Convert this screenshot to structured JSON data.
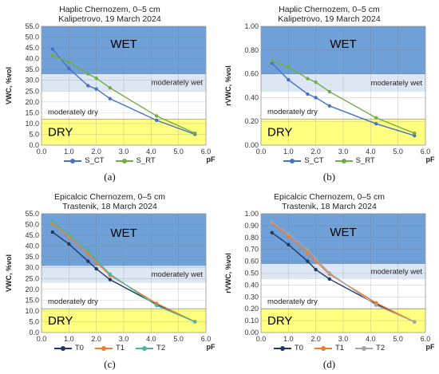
{
  "colors": {
    "wet": "#6fa0d8",
    "moderately_wet": "#dde6f3",
    "dry": "#ffff80",
    "S_CT": "#4472c4",
    "S_RT": "#70ad47",
    "T0": "#1f3864",
    "T1": "#ed7d31",
    "T2": "#4fb39a",
    "T2_b": "#a5a5a5"
  },
  "chart_data": [
    {
      "type": "line",
      "caption": "(a)",
      "title_line1": "Haplic Chernozem, 0–5 cm",
      "title_line2": "Kalipetrovo, 19 March 2024",
      "ylabel": "VWC, %vol",
      "xlabel": "pF",
      "xlim": [
        0,
        6
      ],
      "ylim": [
        0,
        55
      ],
      "xticks": [
        "0.0",
        "1.0",
        "2.0",
        "3.0",
        "4.0",
        "5.0",
        "6.0"
      ],
      "yticks": [
        "0.0",
        "5.0",
        "10.0",
        "15.0",
        "20.0",
        "25.0",
        "30.0",
        "35.0",
        "40.0",
        "45.0",
        "50.0",
        "55.0"
      ],
      "zones": [
        {
          "name": "WET",
          "from": 33,
          "to": 55,
          "style": "wet"
        },
        {
          "name": "moderately wet",
          "from": 25,
          "to": 33,
          "style": "moderately_wet"
        },
        {
          "name": "moderately dry",
          "from": 12,
          "to": 25,
          "style": "none"
        },
        {
          "name": "DRY",
          "from": 0,
          "to": 12,
          "style": "dry"
        }
      ],
      "series": [
        {
          "name": "S_CT",
          "color_key": "S_CT",
          "x": [
            0.4,
            1.0,
            1.7,
            2.0,
            2.5,
            4.2,
            5.6
          ],
          "y": [
            44.5,
            35.5,
            27.5,
            26.0,
            21.5,
            11.5,
            5.0
          ]
        },
        {
          "name": "S_RT",
          "color_key": "S_RT",
          "x": [
            0.4,
            1.0,
            1.7,
            2.0,
            2.5,
            4.2,
            5.6
          ],
          "y": [
            41.5,
            38.5,
            33.0,
            31.0,
            26.5,
            13.5,
            5.5
          ]
        }
      ]
    },
    {
      "type": "line",
      "caption": "(b)",
      "title_line1": "Haplic Chernozem, 0–5 cm",
      "title_line2": "Kalipetrovo, 19 March 2024",
      "ylabel": "rVWC, %vol",
      "xlabel": "pF",
      "xlim": [
        0,
        6
      ],
      "ylim": [
        0,
        1
      ],
      "xticks": [
        "0.0",
        "1.0",
        "2.0",
        "3.0",
        "4.0",
        "5.0",
        "6.0"
      ],
      "yticks": [
        "0.00",
        "0.20",
        "0.40",
        "0.60",
        "0.80",
        "1.00"
      ],
      "zones": [
        {
          "name": "WET",
          "from": 0.6,
          "to": 1.0,
          "style": "wet"
        },
        {
          "name": "moderately wet",
          "from": 0.45,
          "to": 0.6,
          "style": "moderately_wet"
        },
        {
          "name": "moderately dry",
          "from": 0.22,
          "to": 0.45,
          "style": "none"
        },
        {
          "name": "DRY",
          "from": 0,
          "to": 0.22,
          "style": "dry"
        }
      ],
      "series": [
        {
          "name": "S_CT",
          "color_key": "S_CT",
          "x": [
            0.4,
            1.0,
            1.7,
            2.0,
            2.5,
            4.2,
            5.6
          ],
          "y": [
            0.69,
            0.55,
            0.43,
            0.4,
            0.33,
            0.18,
            0.08
          ]
        },
        {
          "name": "S_RT",
          "color_key": "S_RT",
          "x": [
            0.4,
            1.0,
            1.7,
            2.0,
            2.5,
            4.2,
            5.6
          ],
          "y": [
            0.71,
            0.66,
            0.56,
            0.53,
            0.45,
            0.23,
            0.1
          ]
        }
      ]
    },
    {
      "type": "line",
      "caption": "(c)",
      "title_line1": "Epicalcic Chernozem, 0–5 cm",
      "title_line2": "Trastenik, 18 March 2024",
      "ylabel": "VWC, %vol",
      "xlabel": "pF",
      "xlim": [
        0,
        6
      ],
      "ylim": [
        0,
        55
      ],
      "xticks": [
        "0.0",
        "1.0",
        "2.0",
        "3.0",
        "4.0",
        "5.0",
        "6.0"
      ],
      "yticks": [
        "0.0",
        "5.0",
        "10.0",
        "15.0",
        "20.0",
        "25.0",
        "30.0",
        "35.0",
        "40.0",
        "45.0",
        "50.0",
        "55.0"
      ],
      "zones": [
        {
          "name": "WET",
          "from": 31,
          "to": 55,
          "style": "wet"
        },
        {
          "name": "moderately wet",
          "from": 23,
          "to": 31,
          "style": "moderately_wet"
        },
        {
          "name": "moderately dry",
          "from": 11,
          "to": 23,
          "style": "none"
        },
        {
          "name": "DRY",
          "from": 0,
          "to": 11,
          "style": "dry"
        }
      ],
      "series": [
        {
          "name": "T0",
          "color_key": "T0",
          "x": [
            0.4,
            1.0,
            1.7,
            2.0,
            2.5,
            4.2,
            5.6
          ],
          "y": [
            46.5,
            41.0,
            33.0,
            29.5,
            24.5,
            13.0,
            5.0
          ]
        },
        {
          "name": "T1",
          "color_key": "T1",
          "x": [
            0.4,
            1.0,
            1.7,
            2.0,
            2.5,
            4.2,
            5.6
          ],
          "y": [
            50.5,
            44.5,
            36.5,
            32.5,
            26.5,
            13.5,
            5.0
          ]
        },
        {
          "name": "T2",
          "color_key": "T2",
          "x": [
            0.4,
            1.0,
            1.7,
            2.0,
            2.5,
            4.2,
            5.6
          ],
          "y": [
            51.5,
            45.5,
            38.0,
            33.5,
            27.0,
            12.5,
            5.0
          ]
        }
      ]
    },
    {
      "type": "line",
      "caption": "(d)",
      "title_line1": "Epicalcic Chernozem, 0–5 cm",
      "title_line2": "Trastenik, 18 March 2024",
      "ylabel": "rVWC, %vol",
      "xlabel": "pF",
      "xlim": [
        0,
        6
      ],
      "ylim": [
        0,
        1
      ],
      "xticks": [
        "0.0",
        "1.0",
        "2.0",
        "3.0",
        "4.0",
        "5.0",
        "6.0"
      ],
      "yticks": [
        "0.00",
        "0.10",
        "0.20",
        "0.30",
        "0.40",
        "0.50",
        "0.60",
        "0.70",
        "0.80",
        "0.90",
        "1.00"
      ],
      "zones": [
        {
          "name": "WET",
          "from": 0.58,
          "to": 1.0,
          "style": "wet"
        },
        {
          "name": "moderately wet",
          "from": 0.45,
          "to": 0.58,
          "style": "moderately_wet"
        },
        {
          "name": "moderately dry",
          "from": 0.2,
          "to": 0.45,
          "style": "none"
        },
        {
          "name": "DRY",
          "from": 0,
          "to": 0.2,
          "style": "dry"
        }
      ],
      "series": [
        {
          "name": "T0",
          "color_key": "T0",
          "x": [
            0.4,
            1.0,
            1.7,
            2.0,
            2.5,
            4.2,
            5.6
          ],
          "y": [
            0.84,
            0.74,
            0.6,
            0.53,
            0.45,
            0.24,
            0.09
          ]
        },
        {
          "name": "T1",
          "color_key": "T1",
          "x": [
            0.4,
            1.0,
            1.7,
            2.0,
            2.5,
            4.2,
            5.6
          ],
          "y": [
            0.92,
            0.81,
            0.67,
            0.6,
            0.49,
            0.25,
            0.09
          ]
        },
        {
          "name": "T2",
          "color_key": "T2_b",
          "x": [
            0.4,
            1.0,
            1.7,
            2.0,
            2.5,
            4.2,
            5.6
          ],
          "y": [
            0.93,
            0.83,
            0.7,
            0.62,
            0.5,
            0.23,
            0.09
          ]
        }
      ]
    }
  ]
}
